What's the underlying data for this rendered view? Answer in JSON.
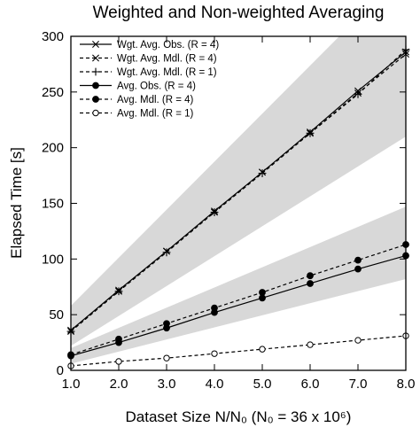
{
  "chart_data": {
    "type": "line",
    "title": "Weighted and Non-weighted Averaging",
    "xlabel": "Dataset Size N/N₀ (N₀ = 36 x 10⁶)",
    "ylabel": "Elapsed Time [s]",
    "xlim": [
      1.0,
      8.0
    ],
    "ylim": [
      0,
      300
    ],
    "xticks": [
      "1.0",
      "2.0",
      "3.0",
      "4.0",
      "5.0",
      "6.0",
      "7.0",
      "8.0"
    ],
    "yticks": [
      "0",
      "50",
      "100",
      "150",
      "200",
      "250",
      "300"
    ],
    "legend_position": "top-left",
    "grid": false,
    "shaded_bands": [
      {
        "x": [
          1,
          8
        ],
        "lower": [
          22,
          210
        ],
        "upper": [
          58,
          360
        ]
      },
      {
        "x": [
          1,
          8
        ],
        "lower": [
          6,
          82
        ],
        "upper": [
          20,
          147
        ]
      }
    ],
    "series": [
      {
        "name": "Wgt. Avg. Obs. (R = 4)",
        "line": "solid",
        "marker": "x",
        "x": [
          1,
          2,
          3,
          4,
          5,
          6,
          7,
          8
        ],
        "values": [
          36,
          72,
          107,
          143,
          178,
          214,
          251,
          286
        ]
      },
      {
        "name": "Wgt. Avg. Mdl. (R = 4)",
        "line": "dashed",
        "marker": "x",
        "x": [
          1,
          2,
          3,
          4,
          5,
          6,
          7,
          8
        ],
        "values": [
          35,
          71,
          107,
          142,
          178,
          213,
          249,
          284
        ]
      },
      {
        "name": "Wgt. Avg. Mdl. (R = 1)",
        "line": "dashed",
        "marker": "plus",
        "x": [
          1,
          2,
          3,
          4,
          5,
          6,
          7,
          8
        ],
        "values": [
          35,
          71,
          106,
          142,
          177,
          213,
          248,
          288
        ]
      },
      {
        "name": "Avg. Obs. (R = 4)",
        "line": "solid",
        "marker": "filled-circle",
        "x": [
          1,
          2,
          3,
          4,
          5,
          6,
          7,
          8
        ],
        "values": [
          13,
          25,
          38,
          52,
          65,
          78,
          91,
          103
        ]
      },
      {
        "name": "Avg. Mdl. (R = 4)",
        "line": "dashed",
        "marker": "filled-circle",
        "x": [
          1,
          2,
          3,
          4,
          5,
          6,
          7,
          8
        ],
        "values": [
          14,
          28,
          42,
          56,
          70,
          85,
          99,
          113
        ]
      },
      {
        "name": "Avg. Mdl. (R = 1)",
        "line": "dashed",
        "marker": "open-circle",
        "x": [
          1,
          2,
          3,
          4,
          5,
          6,
          7,
          8
        ],
        "values": [
          4,
          8,
          11,
          15,
          19,
          23,
          27,
          31
        ]
      }
    ]
  }
}
